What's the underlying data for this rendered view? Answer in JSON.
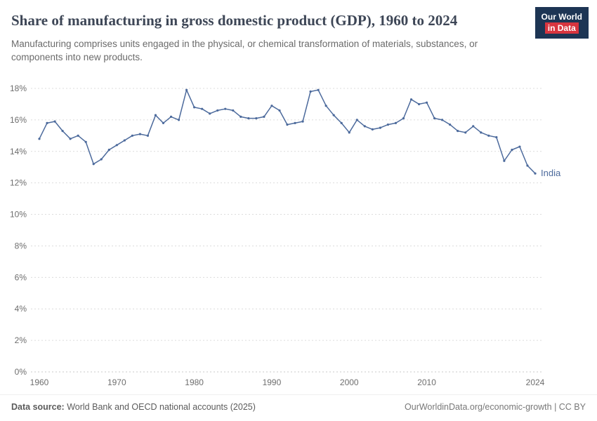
{
  "header": {
    "title": "Share of manufacturing in gross domestic product (GDP), 1960 to 2024",
    "subtitle": "Manufacturing comprises units engaged in the physical, or chemical transformation of materials, substances, or components into new products.",
    "logo": {
      "line1": "Our World",
      "line2": "in Data",
      "bg_color": "#1d3554",
      "accent_color": "#d8353f"
    }
  },
  "footer": {
    "source_label": "Data source:",
    "source_text": "World Bank and OECD national accounts (2025)",
    "right_text": "OurWorldinData.org/economic-growth | CC BY"
  },
  "chart_data": {
    "type": "line",
    "title": "Share of manufacturing in gross domestic product (GDP), 1960 to 2024",
    "xlabel": "",
    "ylabel": "",
    "grid": "dashed-horizontal",
    "legend_position": "end-of-line-label",
    "xlim": [
      1960,
      2024
    ],
    "ylim": [
      0,
      18
    ],
    "x_ticks": [
      1960,
      1970,
      1980,
      1990,
      2000,
      2010,
      2024
    ],
    "y_ticks": [
      0,
      2,
      4,
      6,
      8,
      10,
      12,
      14,
      16,
      18
    ],
    "y_tick_suffix": "%",
    "tick_color": "#6e6e6e",
    "grid_color": "#dcdcdc",
    "series": [
      {
        "name": "India",
        "color": "#4c6a9c",
        "x": [
          1960,
          1961,
          1962,
          1963,
          1964,
          1965,
          1966,
          1967,
          1968,
          1969,
          1970,
          1971,
          1972,
          1973,
          1974,
          1975,
          1976,
          1977,
          1978,
          1979,
          1980,
          1981,
          1982,
          1983,
          1984,
          1985,
          1986,
          1987,
          1988,
          1989,
          1990,
          1991,
          1992,
          1993,
          1994,
          1995,
          1996,
          1997,
          1998,
          1999,
          2000,
          2001,
          2002,
          2003,
          2004,
          2005,
          2006,
          2007,
          2008,
          2009,
          2010,
          2011,
          2012,
          2013,
          2014,
          2015,
          2016,
          2017,
          2018,
          2019,
          2020,
          2021,
          2022,
          2023,
          2024
        ],
        "values": [
          14.8,
          15.8,
          15.9,
          15.3,
          14.8,
          15.0,
          14.6,
          13.2,
          13.5,
          14.1,
          14.4,
          14.7,
          15.0,
          15.1,
          15.0,
          16.3,
          15.8,
          16.2,
          16.0,
          17.9,
          16.8,
          16.7,
          16.4,
          16.6,
          16.7,
          16.6,
          16.2,
          16.1,
          16.1,
          16.2,
          16.9,
          16.6,
          15.7,
          15.8,
          15.9,
          17.8,
          17.9,
          16.9,
          16.3,
          15.8,
          15.2,
          16.0,
          15.6,
          15.4,
          15.5,
          15.7,
          15.8,
          16.1,
          17.3,
          17.0,
          17.1,
          16.1,
          16.0,
          15.7,
          15.3,
          15.2,
          15.6,
          15.2,
          15.0,
          14.9,
          13.4,
          14.1,
          14.3,
          13.1,
          12.6
        ]
      }
    ]
  }
}
